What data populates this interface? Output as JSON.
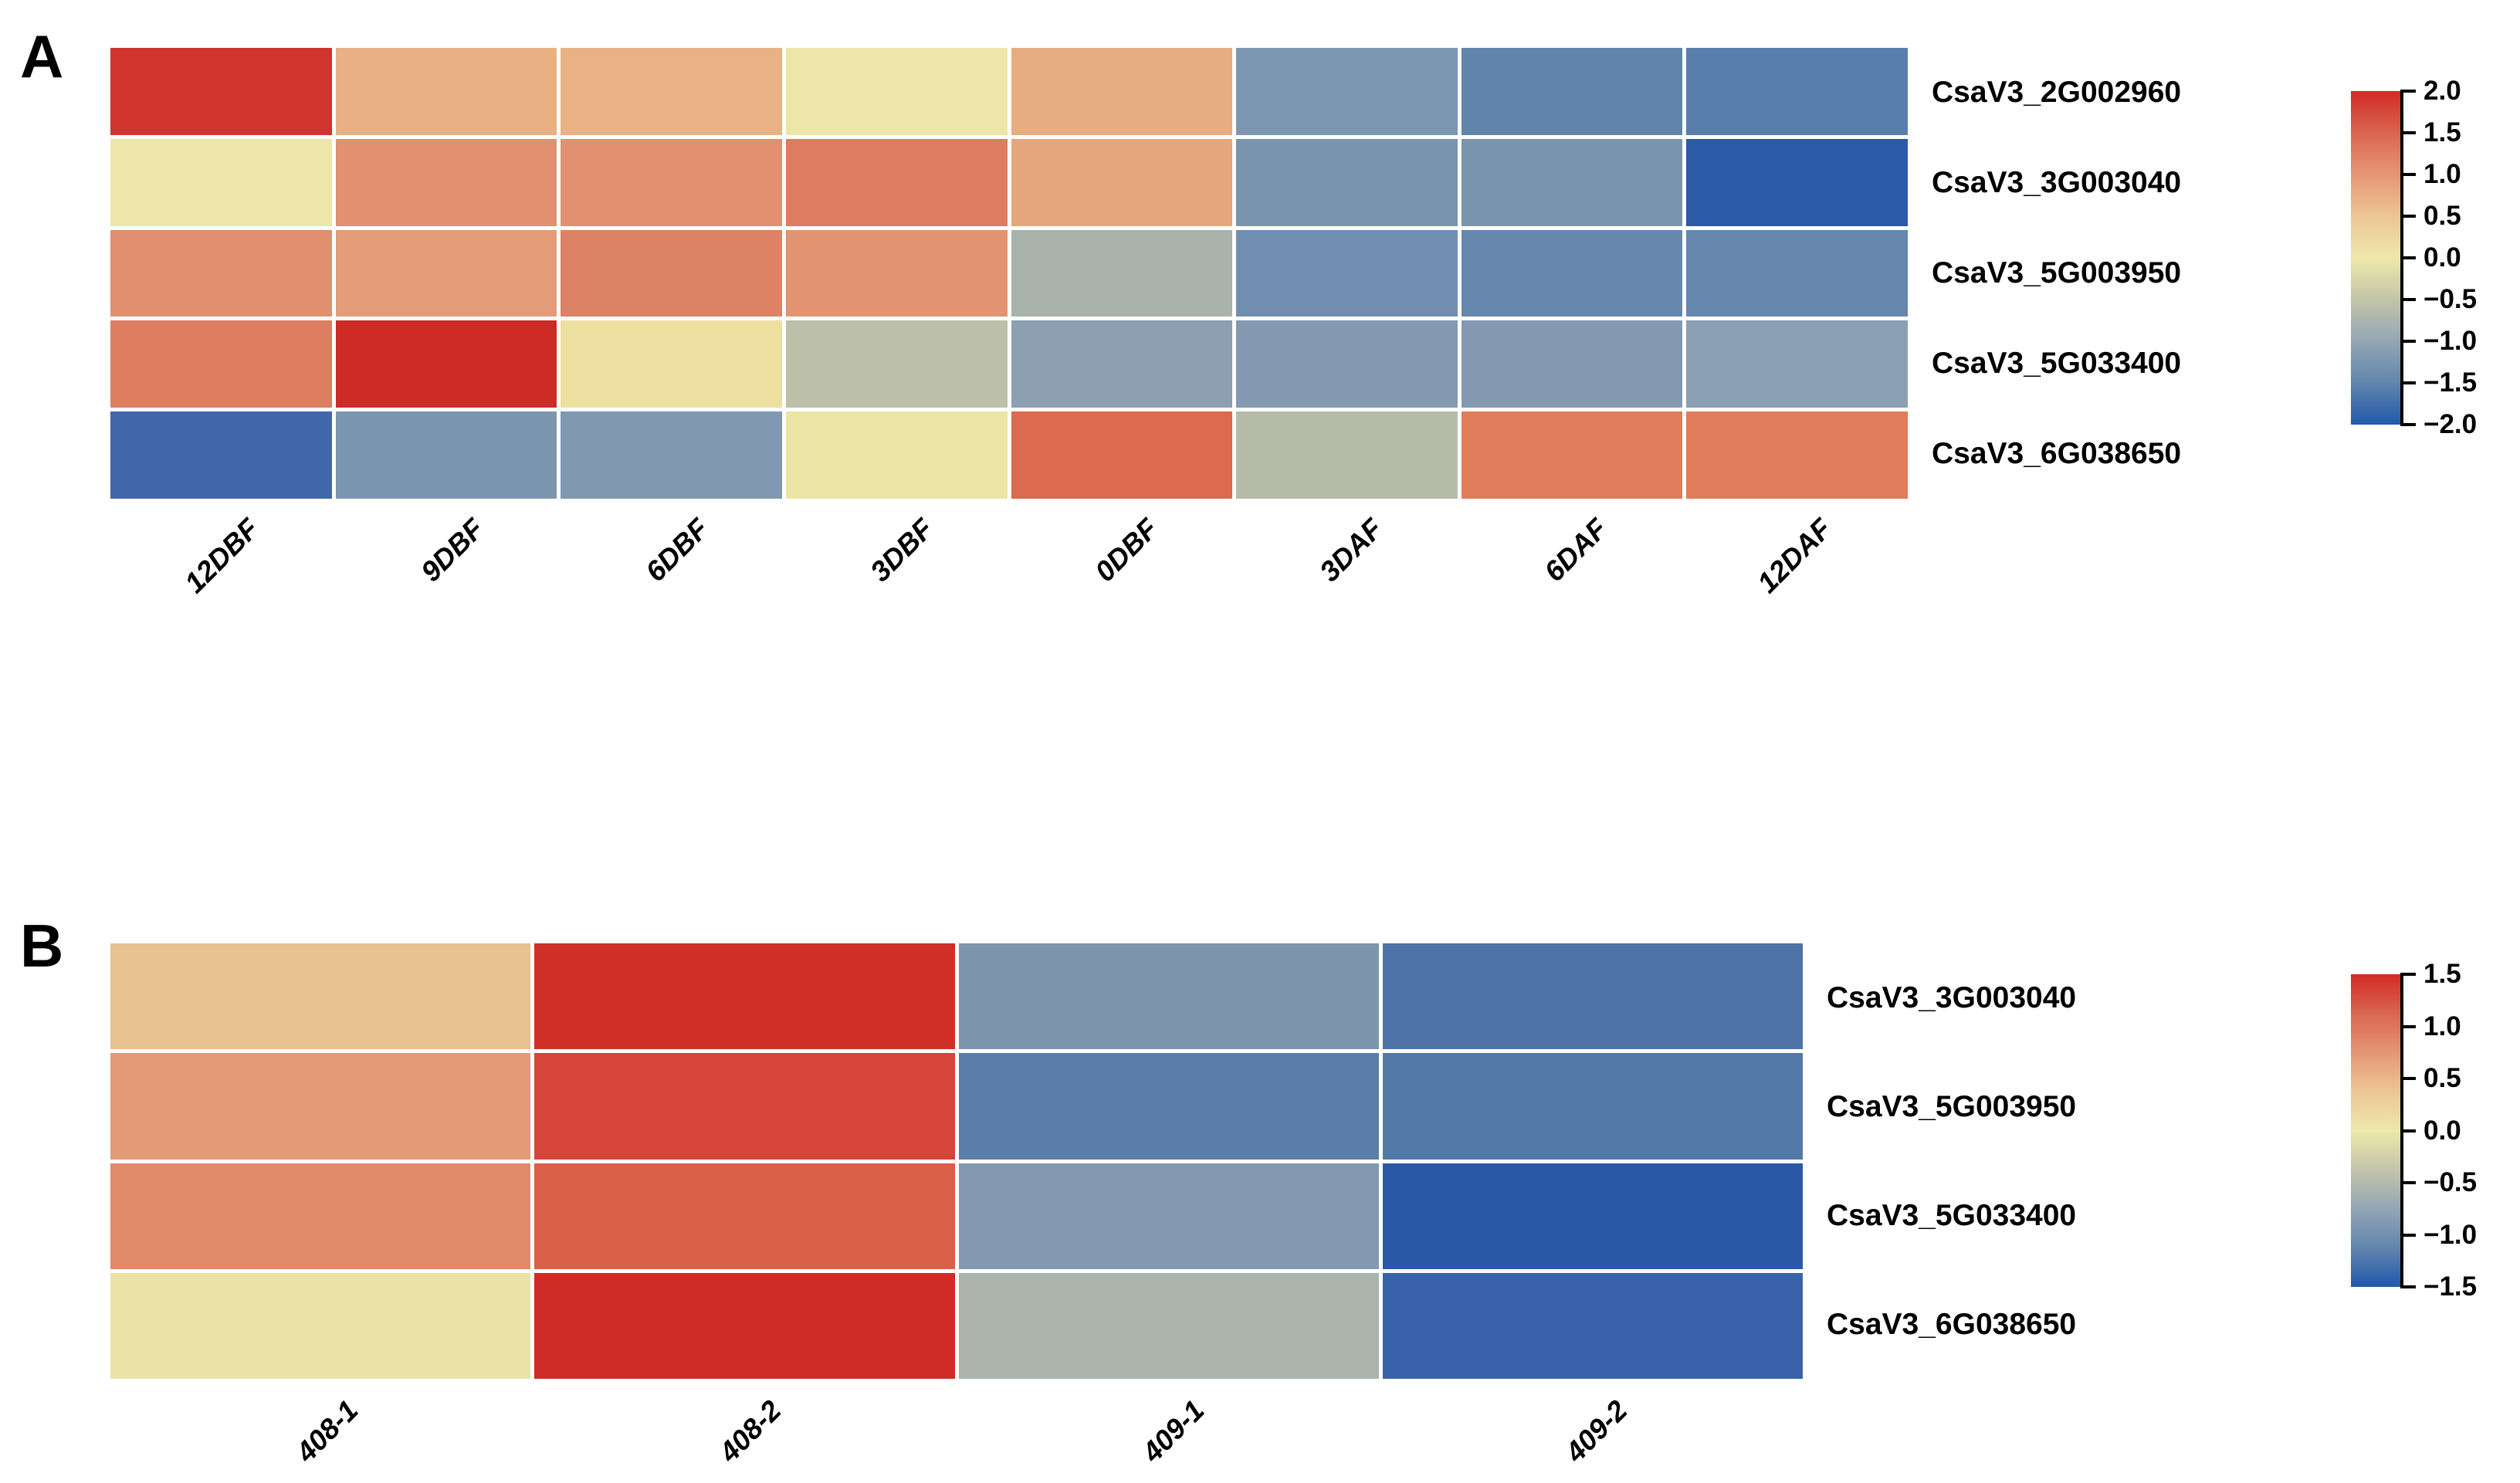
{
  "figure": {
    "background": "#ffffff",
    "panel_a_letter": "A",
    "panel_b_letter": "B"
  },
  "chart_data": [
    {
      "type": "heatmap",
      "panel_label": "A",
      "rows": [
        "CsaV3_2G002960",
        "CsaV3_3G003040",
        "CsaV3_5G003950",
        "CsaV3_5G033400",
        "CsaV3_6G038650"
      ],
      "columns": [
        "12DBF",
        "9DBF",
        "6DBF",
        "3DBF",
        "0DBF",
        "3DAF",
        "6DAF",
        "12DAF"
      ],
      "values": [
        [
          1.9,
          0.75,
          0.75,
          0.05,
          0.8,
          -1.2,
          -1.5,
          -1.55
        ],
        [
          0.0,
          1.0,
          1.0,
          1.2,
          0.85,
          -1.25,
          -1.25,
          -1.95
        ],
        [
          1.0,
          0.9,
          1.15,
          0.95,
          -0.65,
          -1.35,
          -1.45,
          -1.45
        ],
        [
          1.2,
          2.0,
          0.2,
          -0.5,
          -1.05,
          -1.15,
          -1.15,
          -1.05
        ],
        [
          -1.8,
          -1.2,
          -1.2,
          0.05,
          1.35,
          -0.55,
          1.25,
          1.25
        ]
      ],
      "cell_colors": [
        [
          "#d0342c",
          "#e7b183",
          "#e8b284",
          "#ece7a9",
          "#e6ae80",
          "#7e97b0",
          "#6185ac",
          "#5a7eab"
        ],
        [
          "#ece7a8",
          "#e19070",
          "#e19070",
          "#dc7c60",
          "#e5a67c",
          "#7b94ae",
          "#7b94ae",
          "#2d59a9"
        ],
        [
          "#e08f6f",
          "#e39b78",
          "#dd8264",
          "#e29371",
          "#a9b3ac",
          "#708eb0",
          "#6587ae",
          "#6587ae"
        ],
        [
          "#dd7e61",
          "#cf2b26",
          "#ecdfa0",
          "#bcc0a8",
          "#8ca0b2",
          "#8499b1",
          "#8499b1",
          "#8a9fb3"
        ],
        [
          "#4166ab",
          "#7d96af",
          "#8099b1",
          "#ece5a4",
          "#db6a4e",
          "#b5bcaa",
          "#e07c5a",
          "#e07c5a"
        ]
      ],
      "colorbar": {
        "vmin": -2.0,
        "vmax": 2.0,
        "ticks": [
          "2.0",
          "1.5",
          "1.0",
          "0.5",
          "0.0",
          "−0.5",
          "−1.0",
          "−1.5",
          "−2.0"
        ],
        "gradient": [
          "#d22b26",
          "#d96550",
          "#e59677",
          "#ecc693",
          "#eee8a9",
          "#c3c5aa",
          "#93a6b4",
          "#6285ad",
          "#2158ab"
        ],
        "position": "right"
      },
      "grid": "off",
      "legend_position": "right"
    },
    {
      "type": "heatmap",
      "panel_label": "B",
      "rows": [
        "CsaV3_3G003040",
        "CsaV3_5G003950",
        "CsaV3_5G033400",
        "CsaV3_6G038650"
      ],
      "columns": [
        "408-1",
        "408-2",
        "409-1",
        "409-2"
      ],
      "values": [
        [
          0.45,
          1.45,
          -0.9,
          -1.2
        ],
        [
          0.7,
          1.35,
          -1.15,
          -1.2
        ],
        [
          0.8,
          1.2,
          -0.85,
          -1.45
        ],
        [
          0.05,
          1.45,
          -0.6,
          -1.35
        ]
      ],
      "cell_colors": [
        [
          "#e5c28e",
          "#d02f28",
          "#7d96ae",
          "#4e73a8"
        ],
        [
          "#e49a76",
          "#d5453a",
          "#5b7daa",
          "#5379a9"
        ],
        [
          "#e08a68",
          "#d95f47",
          "#8299b1",
          "#2b57a8"
        ],
        [
          "#e9e3a5",
          "#d02b26",
          "#aab4ab",
          "#3a62ab"
        ]
      ],
      "colorbar": {
        "vmin": -1.5,
        "vmax": 1.5,
        "ticks": [
          "1.5",
          "1.0",
          "0.5",
          "0.0",
          "−0.5",
          "−1.0",
          "−1.5"
        ],
        "gradient": [
          "#d22b26",
          "#d96550",
          "#e59677",
          "#ecc693",
          "#eee8a9",
          "#c3c5aa",
          "#93a6b4",
          "#6285ad",
          "#2158ab"
        ],
        "position": "right"
      },
      "grid": "off",
      "legend_position": "right"
    }
  ]
}
